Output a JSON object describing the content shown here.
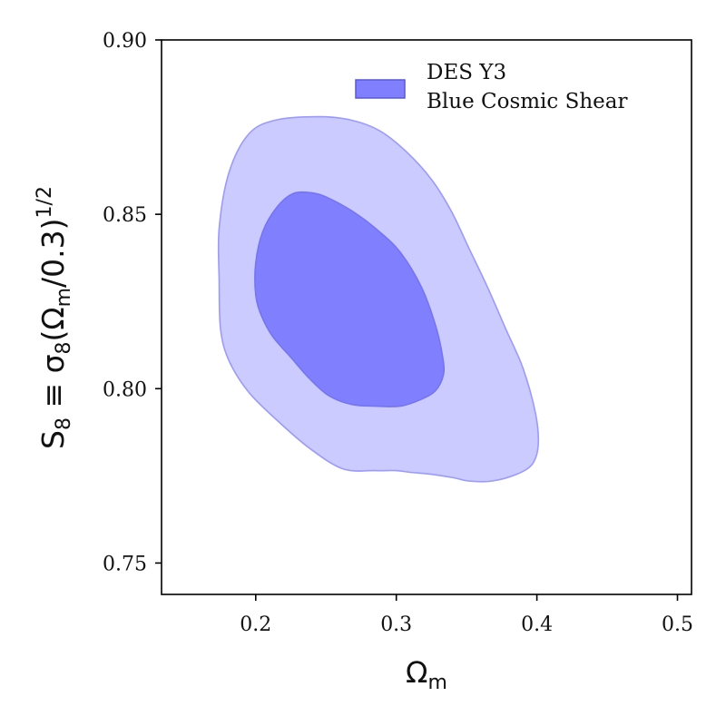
{
  "chart_data": {
    "type": "contour",
    "title": "",
    "xlabel": "Ω",
    "xlabel_sub": "m",
    "ylabel": "S",
    "ylabel_sub": "8",
    "ylabel_rest": " ≡ σ",
    "ylabel_sub2": "8",
    "ylabel_paren": "(Ω",
    "ylabel_sub3": "m",
    "ylabel_tail": "/0.3)",
    "ylabel_sup": "1/2",
    "xlim": [
      0.133,
      0.51
    ],
    "ylim": [
      0.741,
      0.9
    ],
    "xticks": [
      0.2,
      0.3,
      0.4,
      0.5
    ],
    "xtick_labels": [
      "0.2",
      "0.3",
      "0.4",
      "0.5"
    ],
    "yticks": [
      0.75,
      0.8,
      0.85,
      0.9
    ],
    "ytick_labels": [
      "0.75",
      "0.80",
      "0.85",
      "0.90"
    ],
    "grid": false,
    "legend": {
      "placement": "top-right",
      "entries": [
        {
          "line1": "DES Y3",
          "line2": "Blue Cosmic Shear",
          "color": "#8080ff"
        }
      ]
    },
    "series": [
      {
        "name": "DES Y3 Blue Cosmic Shear",
        "level": "95%",
        "fill": "#cbcbff",
        "stroke": "#9a9aff",
        "points": [
          [
            0.214,
            0.877
          ],
          [
            0.195,
            0.873
          ],
          [
            0.181,
            0.862
          ],
          [
            0.174,
            0.846
          ],
          [
            0.174,
            0.831
          ],
          [
            0.175,
            0.817
          ],
          [
            0.181,
            0.808
          ],
          [
            0.195,
            0.799
          ],
          [
            0.215,
            0.791
          ],
          [
            0.238,
            0.783
          ],
          [
            0.262,
            0.777
          ],
          [
            0.284,
            0.7765
          ],
          [
            0.3,
            0.7765
          ],
          [
            0.31,
            0.776
          ],
          [
            0.324,
            0.7755
          ],
          [
            0.34,
            0.7745
          ],
          [
            0.352,
            0.7735
          ],
          [
            0.368,
            0.7735
          ],
          [
            0.386,
            0.7755
          ],
          [
            0.397,
            0.7785
          ],
          [
            0.401,
            0.784
          ],
          [
            0.399,
            0.793
          ],
          [
            0.39,
            0.806
          ],
          [
            0.378,
            0.817
          ],
          [
            0.365,
            0.829
          ],
          [
            0.352,
            0.84
          ],
          [
            0.339,
            0.851
          ],
          [
            0.325,
            0.86
          ],
          [
            0.307,
            0.868
          ],
          [
            0.288,
            0.874
          ],
          [
            0.268,
            0.877
          ],
          [
            0.245,
            0.878
          ]
        ]
      },
      {
        "name": "DES Y3 Blue Cosmic Shear",
        "level": "68%",
        "fill": "#8080ff",
        "stroke": "#7474f4",
        "points": [
          [
            0.227,
            0.856
          ],
          [
            0.215,
            0.852
          ],
          [
            0.205,
            0.845
          ],
          [
            0.2,
            0.836
          ],
          [
            0.2,
            0.827
          ],
          [
            0.204,
            0.821
          ],
          [
            0.212,
            0.815
          ],
          [
            0.225,
            0.809
          ],
          [
            0.238,
            0.803
          ],
          [
            0.252,
            0.798
          ],
          [
            0.268,
            0.7955
          ],
          [
            0.284,
            0.795
          ],
          [
            0.303,
            0.795
          ],
          [
            0.318,
            0.797
          ],
          [
            0.328,
            0.7995
          ],
          [
            0.3335,
            0.804
          ],
          [
            0.333,
            0.809
          ],
          [
            0.328,
            0.818
          ],
          [
            0.318,
            0.829
          ],
          [
            0.303,
            0.839
          ],
          [
            0.288,
            0.845
          ],
          [
            0.272,
            0.85
          ],
          [
            0.255,
            0.854
          ],
          [
            0.242,
            0.856
          ]
        ]
      }
    ]
  }
}
